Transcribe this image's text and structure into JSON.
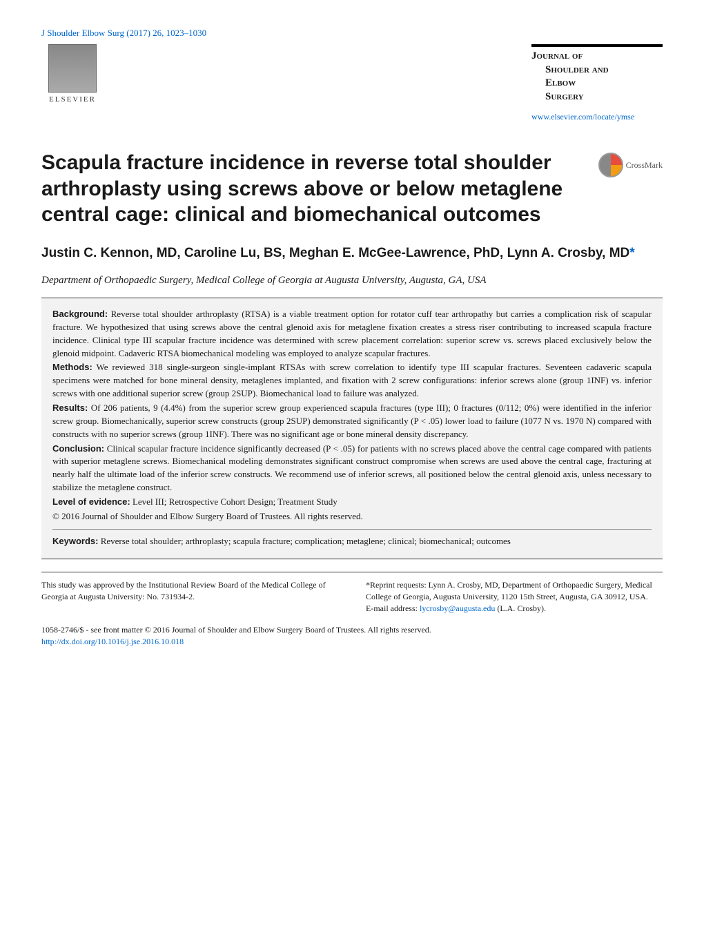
{
  "header": {
    "citation": "J Shoulder Elbow Surg (2017) 26, 1023–1030",
    "publisher_name": "ELSEVIER",
    "journal_name_l1": "Journal of",
    "journal_name_l2": "Shoulder and",
    "journal_name_l3": "Elbow",
    "journal_name_l4": "Surgery",
    "journal_url": "www.elsevier.com/locate/ymse"
  },
  "crossmark_label": "CrossMark",
  "title": "Scapula fracture incidence in reverse total shoulder arthroplasty using screws above or below metaglene central cage: clinical and biomechanical outcomes",
  "authors_line": "Justin C. Kennon, MD, Caroline Lu, BS, Meghan E. McGee-Lawrence, PhD, Lynn A. Crosby, MD",
  "affiliation": "Department of Orthopaedic Surgery, Medical College of Georgia at Augusta University, Augusta, GA, USA",
  "abstract": {
    "background_label": "Background:",
    "background": "Reverse total shoulder arthroplasty (RTSA) is a viable treatment option for rotator cuff tear arthropathy but carries a complication risk of scapular fracture. We hypothesized that using screws above the central glenoid axis for metaglene fixation creates a stress riser contributing to increased scapula fracture incidence. Clinical type III scapular fracture incidence was determined with screw placement correlation: superior screw vs. screws placed exclusively below the glenoid midpoint. Cadaveric RTSA biomechanical modeling was employed to analyze scapular fractures.",
    "methods_label": "Methods:",
    "methods": "We reviewed 318 single-surgeon single-implant RTSAs with screw correlation to identify type III scapular fractures. Seventeen cadaveric scapula specimens were matched for bone mineral density, metaglenes implanted, and fixation with 2 screw configurations: inferior screws alone (group 1INF) vs. inferior screws with one additional superior screw (group 2SUP). Biomechanical load to failure was analyzed.",
    "results_label": "Results:",
    "results": "Of 206 patients, 9 (4.4%) from the superior screw group experienced scapula fractures (type III); 0 fractures (0/112; 0%) were identified in the inferior screw group. Biomechanically, superior screw constructs (group 2SUP) demonstrated significantly (P < .05) lower load to failure (1077 N vs. 1970 N) compared with constructs with no superior screws (group 1INF). There was no significant age or bone mineral density discrepancy.",
    "conclusion_label": "Conclusion:",
    "conclusion": "Clinical scapular fracture incidence significantly decreased (P < .05) for patients with no screws placed above the central cage compared with patients with superior metaglene screws. Biomechanical modeling demonstrates significant construct compromise when screws are used above the central cage, fracturing at nearly half the ultimate load of the inferior screw constructs. We recommend use of inferior screws, all positioned below the central glenoid axis, unless necessary to stabilize the metaglene construct.",
    "loe_label": "Level of evidence:",
    "loe": "Level III; Retrospective Cohort Design; Treatment Study",
    "copyright": "© 2016 Journal of Shoulder and Elbow Surgery Board of Trustees. All rights reserved.",
    "keywords_label": "Keywords:",
    "keywords": "Reverse total shoulder; arthroplasty; scapula fracture; complication; metaglene; clinical; biomechanical; outcomes"
  },
  "footer": {
    "irb": "This study was approved by the Institutional Review Board of the Medical College of Georgia at Augusta University: No. 731934-2.",
    "reprint": "*Reprint requests: Lynn A. Crosby, MD, Department of Orthopaedic Surgery, Medical College of Georgia, Augusta University, 1120 15th Street, Augusta, GA 30912, USA.",
    "email_label": "E-mail address: ",
    "email": "lycrosby@augusta.edu",
    "email_suffix": " (L.A. Crosby).",
    "front_matter": "1058-2746/$ - see front matter © 2016 Journal of Shoulder and Elbow Surgery Board of Trustees. All rights reserved.",
    "doi": "http://dx.doi.org/10.1016/j.jse.2016.10.018"
  },
  "colors": {
    "link": "#0066cc",
    "text": "#1a1a1a",
    "abstract_bg": "#f2f2f2",
    "border": "#333333"
  }
}
